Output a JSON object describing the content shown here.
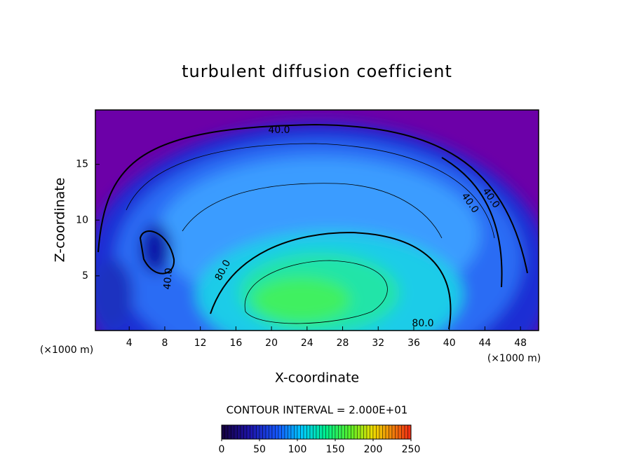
{
  "chart_data": {
    "type": "contour",
    "title": "turbulent diffusion coefficient",
    "x_label": "X-coordinate",
    "y_label": "Z-coordinate",
    "x_unit": "(×1000 m)",
    "y_unit": "(×1000 m)",
    "xlim": [
      0,
      50
    ],
    "xticks": [
      4,
      8,
      12,
      16,
      20,
      24,
      28,
      32,
      36,
      40,
      44,
      48
    ],
    "ylim": [
      0,
      20
    ],
    "yticks": [
      5,
      10,
      15
    ],
    "contour_labels": [
      {
        "value": 40,
        "label": "40.0"
      },
      {
        "value": 40,
        "label": "40.0"
      },
      {
        "value": 40,
        "label": "40.0"
      },
      {
        "value": 40,
        "label": "40.0"
      },
      {
        "value": 80,
        "label": "80.0"
      },
      {
        "value": 80,
        "label": "80.0"
      }
    ],
    "contour_interval": "CONTOUR INTERVAL = 2.000E+01",
    "colorbar": {
      "lim": [
        0,
        250
      ],
      "ticks": [
        0,
        50,
        100,
        150,
        200,
        250
      ]
    }
  }
}
